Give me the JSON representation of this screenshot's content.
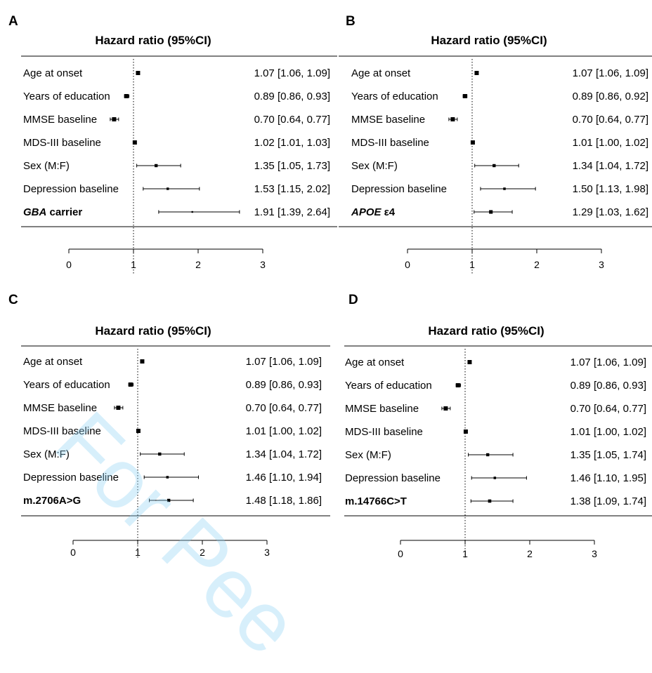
{
  "colors": {
    "ink": "#000000",
    "watermark": "#8fd3f5"
  },
  "watermark_text": "For Pee",
  "chart_data": [
    {
      "type": "forest",
      "panel": "A",
      "title": "Hazard ratio (95%CI)",
      "xlim": [
        0,
        3
      ],
      "xticks": [
        0,
        1,
        2,
        3
      ],
      "reference_line": 1,
      "rows": [
        {
          "label": "Age at onset",
          "italic_part": "",
          "hr": 1.07,
          "lo": 1.06,
          "hi": 1.09,
          "text": "1.07 [1.06, 1.09]"
        },
        {
          "label": "Years of education",
          "italic_part": "",
          "hr": 0.89,
          "lo": 0.86,
          "hi": 0.93,
          "text": "0.89 [0.86, 0.93]"
        },
        {
          "label": "MMSE baseline",
          "italic_part": "",
          "hr": 0.7,
          "lo": 0.64,
          "hi": 0.77,
          "text": "0.70 [0.64, 0.77]"
        },
        {
          "label": "MDS-III baseline",
          "italic_part": "",
          "hr": 1.02,
          "lo": 1.01,
          "hi": 1.03,
          "text": "1.02 [1.01, 1.03]"
        },
        {
          "label": "Sex (M:F)",
          "italic_part": "",
          "hr": 1.35,
          "lo": 1.05,
          "hi": 1.73,
          "text": "1.35 [1.05, 1.73]"
        },
        {
          "label": "Depression baseline",
          "italic_part": "",
          "hr": 1.53,
          "lo": 1.15,
          "hi": 2.02,
          "text": "1.53 [1.15, 2.02]"
        },
        {
          "label": " carrier",
          "italic_part": "GBA",
          "bold": true,
          "hr": 1.91,
          "lo": 1.39,
          "hi": 2.64,
          "text": "1.91 [1.39, 2.64]"
        }
      ]
    },
    {
      "type": "forest",
      "panel": "B",
      "title": "Hazard ratio (95%CI)",
      "xlim": [
        0,
        3
      ],
      "xticks": [
        0,
        1,
        2,
        3
      ],
      "reference_line": 1,
      "rows": [
        {
          "label": "Age at onset",
          "italic_part": "",
          "hr": 1.07,
          "lo": 1.06,
          "hi": 1.09,
          "text": "1.07 [1.06, 1.09]"
        },
        {
          "label": "Years of education",
          "italic_part": "",
          "hr": 0.89,
          "lo": 0.86,
          "hi": 0.92,
          "text": "0.89 [0.86, 0.92]"
        },
        {
          "label": "MMSE baseline",
          "italic_part": "",
          "hr": 0.7,
          "lo": 0.64,
          "hi": 0.77,
          "text": "0.70 [0.64, 0.77]"
        },
        {
          "label": "MDS-III baseline",
          "italic_part": "",
          "hr": 1.01,
          "lo": 1.0,
          "hi": 1.02,
          "text": "1.01 [1.00, 1.02]"
        },
        {
          "label": "Sex (M:F)",
          "italic_part": "",
          "hr": 1.34,
          "lo": 1.04,
          "hi": 1.72,
          "text": "1.34 [1.04, 1.72]"
        },
        {
          "label": "Depression baseline",
          "italic_part": "",
          "hr": 1.5,
          "lo": 1.13,
          "hi": 1.98,
          "text": "1.50 [1.13, 1.98]"
        },
        {
          "label": " ε4",
          "italic_part": "APOE",
          "bold": true,
          "hr": 1.29,
          "lo": 1.03,
          "hi": 1.62,
          "text": "1.29 [1.03, 1.62]"
        }
      ]
    },
    {
      "type": "forest",
      "panel": "C",
      "title": "Hazard ratio (95%CI)",
      "xlim": [
        0,
        3
      ],
      "xticks": [
        0,
        1,
        2,
        3
      ],
      "reference_line": 1,
      "rows": [
        {
          "label": "Age at onset",
          "italic_part": "",
          "hr": 1.07,
          "lo": 1.06,
          "hi": 1.09,
          "text": "1.07 [1.06, 1.09]"
        },
        {
          "label": "Years of education",
          "italic_part": "",
          "hr": 0.89,
          "lo": 0.86,
          "hi": 0.93,
          "text": "0.89 [0.86, 0.93]"
        },
        {
          "label": "MMSE baseline",
          "italic_part": "",
          "hr": 0.7,
          "lo": 0.64,
          "hi": 0.77,
          "text": "0.70 [0.64, 0.77]"
        },
        {
          "label": "MDS-III baseline",
          "italic_part": "",
          "hr": 1.01,
          "lo": 1.0,
          "hi": 1.02,
          "text": "1.01 [1.00, 1.02]"
        },
        {
          "label": "Sex (M:F)",
          "italic_part": "",
          "hr": 1.34,
          "lo": 1.04,
          "hi": 1.72,
          "text": "1.34 [1.04, 1.72]"
        },
        {
          "label": "Depression baseline",
          "italic_part": "",
          "hr": 1.46,
          "lo": 1.1,
          "hi": 1.94,
          "text": "1.46 [1.10, 1.94]"
        },
        {
          "label": "m.2706A>G",
          "italic_part": "",
          "bold": true,
          "hr": 1.48,
          "lo": 1.18,
          "hi": 1.86,
          "text": "1.48 [1.18, 1.86]"
        }
      ]
    },
    {
      "type": "forest",
      "panel": "D",
      "title": "Hazard ratio (95%CI)",
      "xlim": [
        0,
        3
      ],
      "xticks": [
        0,
        1,
        2,
        3
      ],
      "reference_line": 1,
      "rows": [
        {
          "label": "Age at onset",
          "italic_part": "",
          "hr": 1.07,
          "lo": 1.06,
          "hi": 1.09,
          "text": "1.07 [1.06, 1.09]"
        },
        {
          "label": "Years of education",
          "italic_part": "",
          "hr": 0.89,
          "lo": 0.86,
          "hi": 0.93,
          "text": "0.89 [0.86, 0.93]"
        },
        {
          "label": "MMSE baseline",
          "italic_part": "",
          "hr": 0.7,
          "lo": 0.64,
          "hi": 0.77,
          "text": "0.70 [0.64, 0.77]"
        },
        {
          "label": "MDS-III baseline",
          "italic_part": "",
          "hr": 1.01,
          "lo": 1.0,
          "hi": 1.02,
          "text": "1.01 [1.00, 1.02]"
        },
        {
          "label": "Sex (M:F)",
          "italic_part": "",
          "hr": 1.35,
          "lo": 1.05,
          "hi": 1.74,
          "text": "1.35 [1.05, 1.74]"
        },
        {
          "label": "Depression baseline",
          "italic_part": "",
          "hr": 1.46,
          "lo": 1.1,
          "hi": 1.95,
          "text": "1.46 [1.10, 1.95]"
        },
        {
          "label": "m.14766C>T",
          "italic_part": "",
          "bold": true,
          "hr": 1.38,
          "lo": 1.09,
          "hi": 1.74,
          "text": "1.38 [1.09, 1.74]"
        }
      ]
    }
  ]
}
